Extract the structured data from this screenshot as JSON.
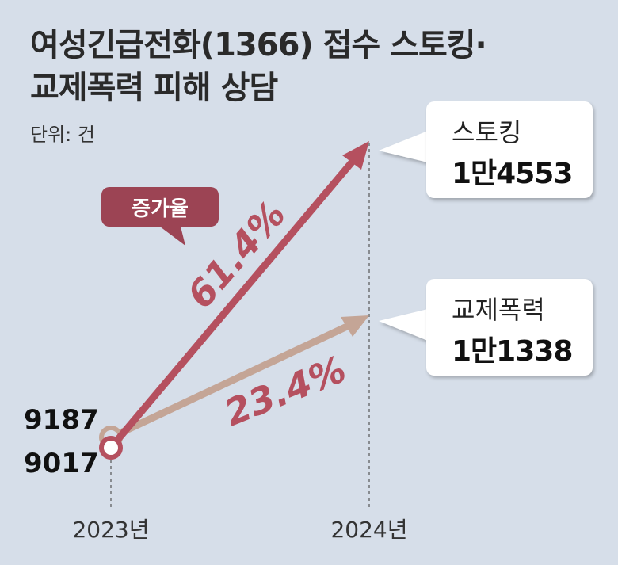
{
  "title_line1": "여성긴급전화(1366) 접수 스토킹·",
  "title_line2": "교제폭력 피해 상담",
  "unit": "단위: 건",
  "badge": "증가율",
  "colors": {
    "stalking": "#b5505f",
    "dating": "#c4a596",
    "background": "#d6dee9"
  },
  "chart_data": {
    "type": "line",
    "categories": [
      "2023년",
      "2024년"
    ],
    "series": [
      {
        "name": "스토킹",
        "values": [
          9017,
          14553
        ],
        "value_labels": [
          "9017",
          "1만4553"
        ],
        "growth": "61.4%"
      },
      {
        "name": "교제폭력",
        "values": [
          9187,
          11338
        ],
        "value_labels": [
          "9187",
          "1만1338"
        ],
        "growth": "23.4%"
      }
    ]
  }
}
